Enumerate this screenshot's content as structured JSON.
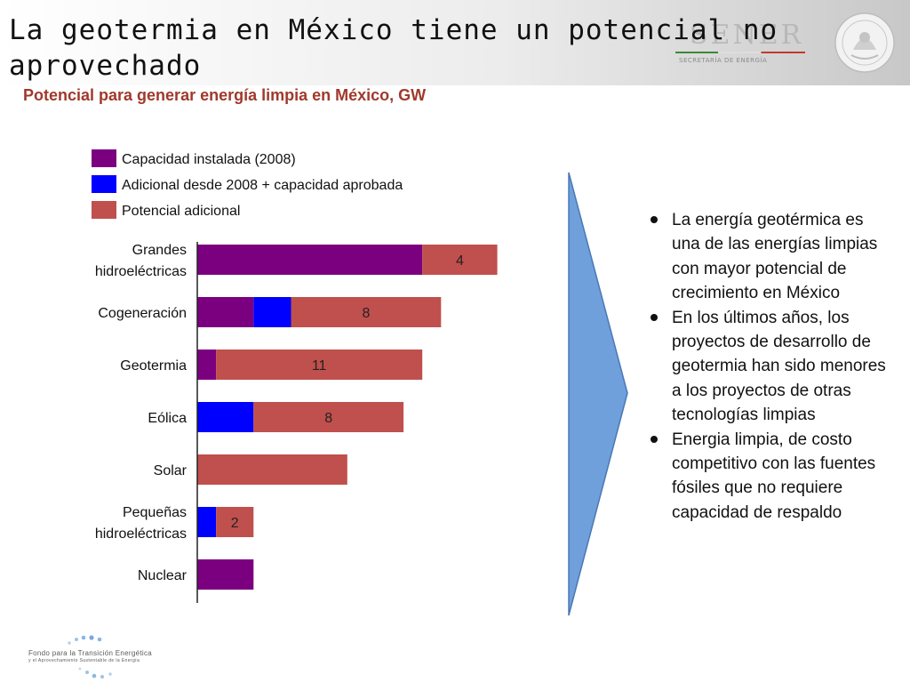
{
  "header": {
    "title": "La geotermia en México tiene un potencial no aprovechado",
    "logo_text": "SENER",
    "logo_subtext": "SECRETARÍA DE ENERGÍA"
  },
  "chart_data": {
    "type": "bar",
    "orientation": "horizontal",
    "stacked": true,
    "title": "Potencial para generar energía limpia en México, GW",
    "categories": [
      "Grandes hidroeléctricas",
      "Cogeneración",
      "Geotermia",
      "Eólica",
      "Solar",
      "Pequeñas hidroeléctricas",
      "Nuclear"
    ],
    "category_lines": [
      [
        "Grandes",
        "hidroeléctricas"
      ],
      [
        "Cogeneración"
      ],
      [
        "Geotermia"
      ],
      [
        "Eólica"
      ],
      [
        "Solar"
      ],
      [
        "Pequeñas",
        "hidroeléctricas"
      ],
      [
        "Nuclear"
      ]
    ],
    "series": [
      {
        "name": "Capacidad instalada (2008)",
        "color": "#7b0080",
        "values": [
          12,
          3,
          1,
          0,
          0,
          0,
          3
        ]
      },
      {
        "name": "Adicional desde 2008 + capacidad aprobada",
        "color": "#0000ff",
        "values": [
          0,
          2,
          0,
          3,
          0,
          1,
          0
        ]
      },
      {
        "name": "Potencial adicional",
        "color": "#c0504d",
        "values": [
          4,
          8,
          11,
          8,
          8,
          2,
          0
        ]
      }
    ],
    "data_labels": [
      "4",
      "8",
      "11",
      "8",
      "",
      "2",
      ""
    ],
    "xlim": [
      0,
      16
    ],
    "legend_position": "top-left",
    "grid": false
  },
  "bullets": [
    "La energía geotérmica es una de las energías limpias con mayor potencial de crecimiento en México",
    "En los últimos años, los proyectos de desarrollo de geotermia han sido menores a los proyectos de otras tecnologías limpias",
    "Energia limpia, de costo competitivo con las fuentes fósiles que no requiere capacidad de respaldo"
  ],
  "footer": {
    "line1": "Fondo para la Transición Energética",
    "line2": "y el Aprovechamiento Sustentable de la Energía"
  },
  "colors": {
    "arrow_fill": "#6fa0dc",
    "subtitle": "#a0392c"
  }
}
